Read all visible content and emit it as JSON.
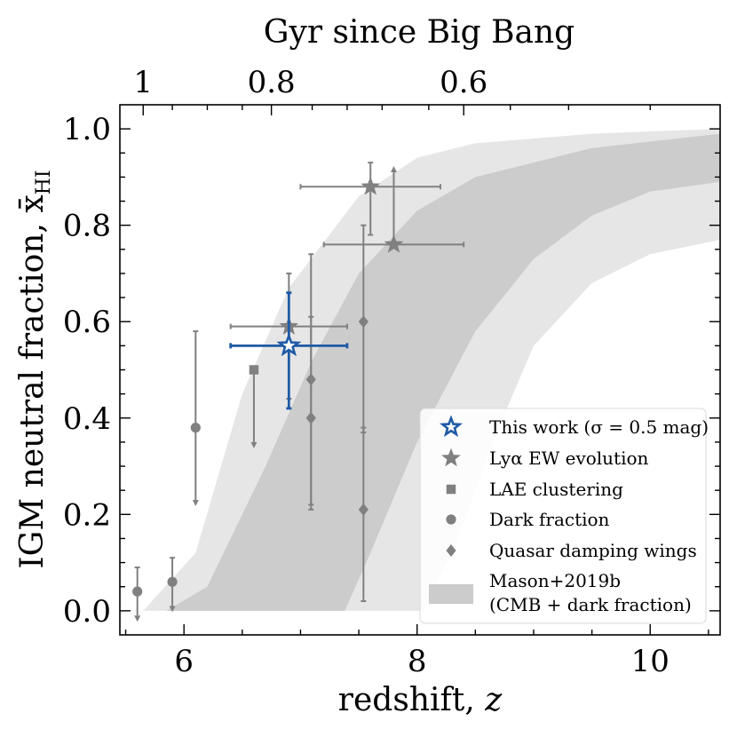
{
  "chart_data": {
    "type": "scatter",
    "xlabel": "redshift, z",
    "ylabel": "IGM neutral fraction, x̄",
    "ylabel_sub": "HI",
    "top_axis_label": "Gyr since Big Bang",
    "xlim": [
      5.45,
      10.6
    ],
    "ylim": [
      -0.05,
      1.05
    ],
    "x_ticks": [
      6,
      8,
      10
    ],
    "y_ticks": [
      0.0,
      0.2,
      0.4,
      0.6,
      0.8,
      1.0
    ],
    "y_tick_labels": [
      "0.0",
      "0.2",
      "0.4",
      "0.6",
      "0.8",
      "1.0"
    ],
    "top_ticks": [
      {
        "label": "1",
        "z": 5.65
      },
      {
        "label": "0.8",
        "z": 6.75
      },
      {
        "label": "0.6",
        "z": 8.4
      }
    ],
    "colors": {
      "this_work": "#1f5aa6",
      "literature": "#808080",
      "band_outer": "#e6e6e6",
      "band_inner": "#cccccc"
    },
    "bands": {
      "outer_lower": [
        [
          5.65,
          0.0
        ],
        [
          6.1,
          0.12
        ],
        [
          6.5,
          0.45
        ],
        [
          6.9,
          0.67
        ],
        [
          7.5,
          0.86
        ],
        [
          8.0,
          0.94
        ],
        [
          8.5,
          0.97
        ],
        [
          9.5,
          0.99
        ],
        [
          10.6,
          1.0
        ]
      ],
      "outer_upper": [
        [
          5.55,
          0.0
        ],
        [
          8.05,
          0.0
        ],
        [
          8.3,
          0.12
        ],
        [
          8.7,
          0.38
        ],
        [
          9.0,
          0.55
        ],
        [
          9.5,
          0.68
        ],
        [
          10.0,
          0.74
        ],
        [
          10.6,
          0.77
        ]
      ],
      "inner_lower": [
        [
          5.85,
          0.0
        ],
        [
          6.2,
          0.05
        ],
        [
          6.7,
          0.3
        ],
        [
          7.1,
          0.52
        ],
        [
          7.5,
          0.7
        ],
        [
          8.0,
          0.83
        ],
        [
          8.5,
          0.9
        ],
        [
          9.5,
          0.96
        ],
        [
          10.6,
          0.99
        ]
      ],
      "inner_upper": [
        [
          6.1,
          0.0
        ],
        [
          7.38,
          0.0
        ],
        [
          7.6,
          0.12
        ],
        [
          8.0,
          0.35
        ],
        [
          8.5,
          0.58
        ],
        [
          9.0,
          0.73
        ],
        [
          9.5,
          0.82
        ],
        [
          10.0,
          0.87
        ],
        [
          10.6,
          0.89
        ]
      ]
    },
    "series": [
      {
        "name": "This work (σ = 0.5 mag)",
        "marker": "star-open",
        "points": [
          {
            "x": 6.9,
            "y": 0.55,
            "xerr": [
              0.5,
              0.5
            ],
            "yerr": [
              0.13,
              0.11
            ]
          }
        ]
      },
      {
        "name": "Lyα EW evolution",
        "marker": "star",
        "points": [
          {
            "x": 6.9,
            "y": 0.59,
            "xerr": [
              0.5,
              0.5
            ],
            "yerr": [
              0.15,
              0.11
            ],
            "limit": "none"
          },
          {
            "x": 7.6,
            "y": 0.88,
            "xerr": [
              0.6,
              0.6
            ],
            "yerr": [
              0.1,
              0.05
            ],
            "limit": "none"
          },
          {
            "x": 7.8,
            "y": 0.76,
            "xerr": [
              0.6,
              0.6
            ],
            "yerr": [
              0.0,
              0.15
            ],
            "limit": "lower"
          }
        ]
      },
      {
        "name": "LAE clustering",
        "marker": "square",
        "points": [
          {
            "x": 6.6,
            "y": 0.5,
            "xerr": [
              0,
              0
            ],
            "yerr": [
              0.15,
              0.0
            ],
            "limit": "upper"
          }
        ]
      },
      {
        "name": "Dark fraction",
        "marker": "circle",
        "points": [
          {
            "x": 5.6,
            "y": 0.04,
            "xerr": [
              0,
              0
            ],
            "yerr": [
              0.05,
              0.05
            ],
            "limit": "upper"
          },
          {
            "x": 5.9,
            "y": 0.06,
            "xerr": [
              0,
              0
            ],
            "yerr": [
              0.05,
              0.05
            ],
            "limit": "upper"
          },
          {
            "x": 6.1,
            "y": 0.38,
            "xerr": [
              0,
              0
            ],
            "yerr": [
              0.15,
              0.2
            ],
            "limit": "upper"
          }
        ]
      },
      {
        "name": "Quasar damping wings",
        "marker": "diamond",
        "points": [
          {
            "x": 7.09,
            "y": 0.48,
            "xerr": [
              0,
              0
            ],
            "yerr": [
              0.26,
              0.26
            ]
          },
          {
            "x": 7.09,
            "y": 0.4,
            "xerr": [
              0,
              0
            ],
            "yerr": [
              0.19,
              0.21
            ]
          },
          {
            "x": 7.54,
            "y": 0.6,
            "xerr": [
              0,
              0
            ],
            "yerr": [
              0.23,
              0.2
            ]
          },
          {
            "x": 7.54,
            "y": 0.21,
            "xerr": [
              0,
              0
            ],
            "yerr": [
              0.19,
              0.17
            ]
          }
        ]
      }
    ],
    "legend": {
      "placement": "lower-right",
      "entries": [
        "This work (σ = 0.5 mag)",
        "Lyα EW evolution",
        "LAE clustering",
        "Dark fraction",
        "Quasar damping wings",
        "Mason+2019b",
        "(CMB + dark fraction)"
      ]
    }
  }
}
